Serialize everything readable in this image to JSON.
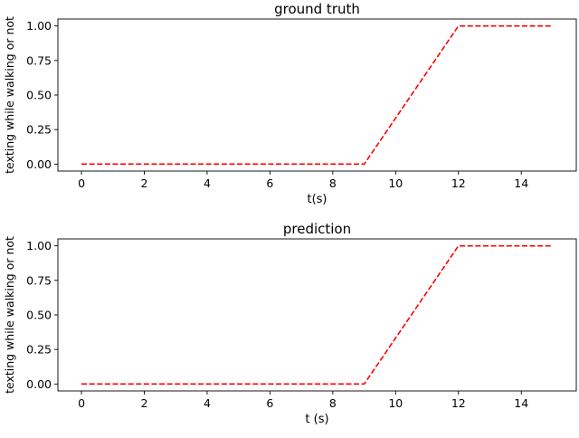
{
  "figure": {
    "background": "#ffffff"
  },
  "chart_data": [
    {
      "type": "line",
      "title": "ground truth",
      "xlabel": "t(s)",
      "ylabel": "texting while walking or not",
      "xlim": [
        -0.75,
        15.75
      ],
      "ylim": [
        -0.05,
        1.05
      ],
      "xticks": [
        0,
        2,
        4,
        6,
        8,
        10,
        12,
        14
      ],
      "yticks": [
        0.0,
        0.25,
        0.5,
        0.75,
        1.0
      ],
      "xtick_labels": [
        "0",
        "2",
        "4",
        "6",
        "8",
        "10",
        "12",
        "14"
      ],
      "ytick_labels": [
        "0.00",
        "0.25",
        "0.50",
        "0.75",
        "1.00"
      ],
      "grid": false,
      "series": [
        {
          "x": [
            0,
            9,
            12,
            15
          ],
          "y": [
            0,
            0,
            1,
            1
          ],
          "color": "#ff0000",
          "linestyle": "dashed"
        }
      ]
    },
    {
      "type": "line",
      "title": "prediction",
      "xlabel": "t (s)",
      "ylabel": "texting while walking or not",
      "xlim": [
        -0.75,
        15.75
      ],
      "ylim": [
        -0.05,
        1.05
      ],
      "xticks": [
        0,
        2,
        4,
        6,
        8,
        10,
        12,
        14
      ],
      "yticks": [
        0.0,
        0.25,
        0.5,
        0.75,
        1.0
      ],
      "xtick_labels": [
        "0",
        "2",
        "4",
        "6",
        "8",
        "10",
        "12",
        "14"
      ],
      "ytick_labels": [
        "0.00",
        "0.25",
        "0.50",
        "0.75",
        "1.00"
      ],
      "grid": false,
      "series": [
        {
          "x": [
            0,
            9,
            12,
            15
          ],
          "y": [
            0,
            0,
            1,
            1
          ],
          "color": "#ff0000",
          "linestyle": "dashed"
        }
      ]
    }
  ]
}
